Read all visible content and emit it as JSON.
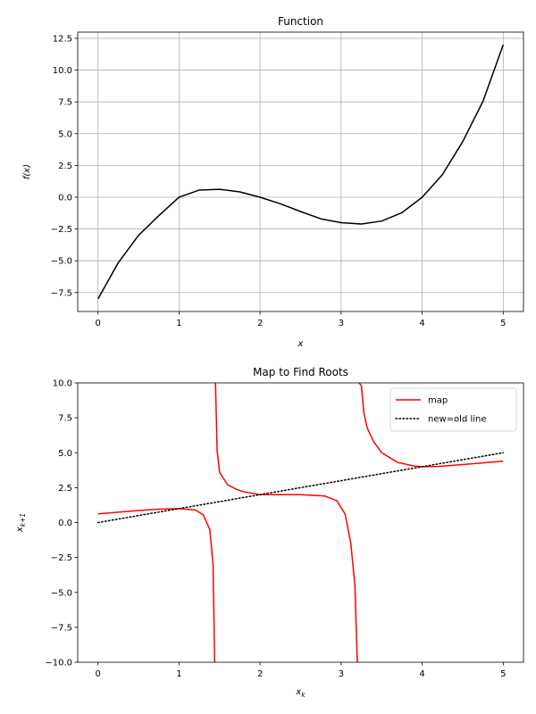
{
  "chart_data": [
    {
      "type": "line",
      "title": "Function",
      "xlabel": "x",
      "ylabel": "f(x)",
      "xlim": [
        -0.25,
        5.25
      ],
      "ylim": [
        -8.99,
        12.99
      ],
      "xticks": [
        0,
        1,
        2,
        3,
        4,
        5
      ],
      "xtick_labels": [
        "0",
        "1",
        "2",
        "3",
        "4",
        "5"
      ],
      "yticks": [
        -7.5,
        -5.0,
        -2.5,
        0.0,
        2.5,
        5.0,
        7.5,
        10.0,
        12.5
      ],
      "ytick_labels": [
        "−7.5",
        "−5.0",
        "−2.5",
        "0.0",
        "2.5",
        "5.0",
        "7.5",
        "10.0",
        "12.5"
      ],
      "grid": true,
      "series": [
        {
          "color": "#000000",
          "x": [
            0,
            0.25,
            0.5,
            0.75,
            1.0,
            1.25,
            1.5,
            1.75,
            2.0,
            2.25,
            2.5,
            2.75,
            3.0,
            3.25,
            3.5,
            3.75,
            4.0,
            4.25,
            4.5,
            4.75,
            5.0
          ],
          "y": [
            -8.0,
            -5.156,
            -3.0,
            -1.453,
            0.0,
            0.563,
            0.625,
            0.422,
            0.0,
            -0.516,
            -1.125,
            -1.703,
            -2.0,
            -2.109,
            -1.875,
            -1.219,
            0.0,
            1.781,
            4.375,
            7.547,
            12.0
          ]
        }
      ]
    },
    {
      "type": "line",
      "title": "Map to Find Roots",
      "xlabel": "x_k",
      "ylabel": "x_{k+1}",
      "xlim": [
        -0.25,
        5.25
      ],
      "ylim": [
        -10,
        10
      ],
      "xticks": [
        0,
        1,
        2,
        3,
        4,
        5
      ],
      "xtick_labels": [
        "0",
        "1",
        "2",
        "3",
        "4",
        "5"
      ],
      "yticks": [
        -10.0,
        -7.5,
        -5.0,
        -2.5,
        0.0,
        2.5,
        5.0,
        7.5,
        10.0
      ],
      "ytick_labels": [
        "−10.0",
        "−7.5",
        "−5.0",
        "−2.5",
        "0.0",
        "2.5",
        "5.0",
        "7.5",
        "10.0"
      ],
      "grid": false,
      "legend": "top-right",
      "series": [
        {
          "name": "map",
          "color": "#ff0000",
          "style": "solid",
          "segments": [
            {
              "x": [
                0,
                0.25,
                0.5,
                0.75,
                1.0,
                1.2,
                1.3,
                1.38,
                1.42,
                1.44
              ],
              "y": [
                0.62,
                0.74,
                0.86,
                0.96,
                1.0,
                0.9,
                0.55,
                -0.5,
                -3.0,
                -10.0
              ]
            },
            {
              "x": [
                1.45,
                1.47,
                1.5,
                1.6,
                1.7,
                1.8,
                2.0,
                2.2,
                2.5,
                2.8,
                2.95,
                3.05,
                3.12,
                3.17,
                3.2
              ],
              "y": [
                10.0,
                5.2,
                3.6,
                2.7,
                2.4,
                2.2,
                2.0,
                2.0,
                2.0,
                1.9,
                1.55,
                0.6,
                -1.5,
                -4.5,
                -10.0
              ]
            },
            {
              "x": [
                3.22,
                3.25,
                3.28,
                3.32,
                3.4,
                3.5,
                3.7,
                3.9,
                4.0,
                4.2,
                4.5,
                4.8,
                5.0
              ],
              "y": [
                10.0,
                9.8,
                7.9,
                6.8,
                5.8,
                5.0,
                4.3,
                4.05,
                4.0,
                4.02,
                4.15,
                4.3,
                4.4
              ]
            }
          ]
        },
        {
          "name": "new=old line",
          "color": "#000000",
          "style": "dotted",
          "segments": [
            {
              "x": [
                0,
                5
              ],
              "y": [
                0,
                5
              ]
            }
          ]
        }
      ]
    }
  ]
}
